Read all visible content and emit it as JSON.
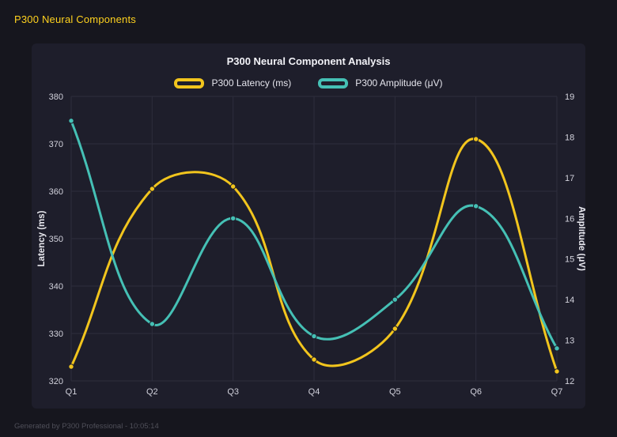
{
  "page": {
    "header_title": "P300 Neural Components",
    "footer": "Generated by P300 Professional - 10:05:14"
  },
  "chart_data": {
    "type": "line",
    "title": "P300 Neural Component Analysis",
    "categories": [
      "Q1",
      "Q2",
      "Q3",
      "Q4",
      "Q5",
      "Q6",
      "Q7"
    ],
    "series": [
      {
        "name": "P300 Latency (ms)",
        "axis": "left",
        "color": "#f2c51d",
        "values": [
          323,
          360.5,
          361,
          324.5,
          331,
          371,
          322
        ]
      },
      {
        "name": "P300 Amplitude (μV)",
        "axis": "right",
        "color": "#45c0b5",
        "values": [
          18.4,
          13.4,
          16.0,
          13.1,
          14.0,
          16.3,
          12.8
        ]
      }
    ],
    "left_axis": {
      "label": "Latency (ms)",
      "min": 320,
      "max": 380,
      "ticks": [
        320,
        330,
        340,
        350,
        360,
        370,
        380
      ]
    },
    "right_axis": {
      "label": "Amplitude (μV)",
      "min": 12,
      "max": 19,
      "ticks": [
        12,
        13,
        14,
        15,
        16,
        17,
        18,
        19
      ]
    },
    "grid": true,
    "legend_position": "top",
    "curve_tension": 0.4
  },
  "colors": {
    "background": "#16161e",
    "panel": "#1e1e2b",
    "grid": "#2d2d3c",
    "tick_text": "#d2d2dc",
    "axis_title_text": "#e8e8ee",
    "chart_title_text": "#f2f2f7",
    "header_yellow": "#ffd21e",
    "footer_text": "#4f4f59"
  }
}
